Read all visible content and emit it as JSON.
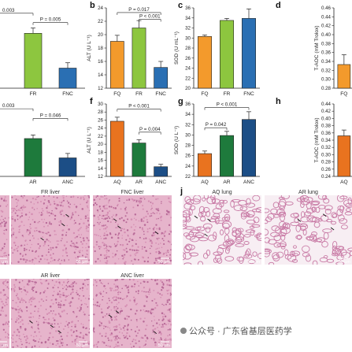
{
  "colors": {
    "orange": "#F39A2C",
    "light_green": "#8DC63F",
    "blue": "#2A6FB3",
    "deep_orange": "#E9731F",
    "dark_green": "#1E7A3C",
    "navy": "#1C4E86",
    "tissue": "#E7B7CC",
    "tissue_dark": "#C77AA2"
  },
  "chart_data": [
    {
      "id": "a",
      "type": "bar",
      "letter": "",
      "categories": [
        "FR",
        "FNC"
      ],
      "values": [
        20.2,
        15.0
      ],
      "errors": [
        0.8,
        0.8
      ],
      "ylabel": "",
      "ylim": [
        12,
        24
      ],
      "yticks": [],
      "comparisons": [
        {
          "from": -1,
          "to": 0,
          "label": "0.003",
          "level": 23.2
        },
        {
          "from": 0,
          "to": 1,
          "label": "P = 0.005",
          "level": 21.8
        }
      ]
    },
    {
      "id": "b",
      "type": "bar",
      "letter": "b",
      "categories": [
        "FQ",
        "FR",
        "FNC"
      ],
      "values": [
        19.0,
        21.0,
        15.1
      ],
      "errors": [
        0.9,
        1.1,
        0.9
      ],
      "ylabel": "ALT (U L⁻¹)",
      "ylim": [
        12,
        24
      ],
      "yticks": [
        12,
        14,
        16,
        18,
        20,
        22,
        24
      ],
      "comparisons": [
        {
          "from": 0,
          "to": 2,
          "label": "P = 0.017",
          "level": 23.3
        },
        {
          "from": 1,
          "to": 2,
          "label": "P < 0.001",
          "level": 22.3
        }
      ]
    },
    {
      "id": "c",
      "type": "bar",
      "letter": "c",
      "categories": [
        "FQ",
        "FR",
        "FNC"
      ],
      "values": [
        30.3,
        33.5,
        33.9
      ],
      "errors": [
        0.3,
        0.4,
        1.9
      ],
      "ylabel": "SOD (U mL⁻¹)",
      "ylim": [
        20,
        36
      ],
      "yticks": [
        20,
        22,
        24,
        26,
        28,
        30,
        32,
        34,
        36
      ],
      "comparisons": []
    },
    {
      "id": "d",
      "type": "bar",
      "letter": "d",
      "categories": [
        "FQ"
      ],
      "values": [
        0.333
      ],
      "errors": [
        0.022
      ],
      "ylabel": "T-AOC (mM Trolox)",
      "ylim": [
        0.28,
        0.46
      ],
      "yticks": [
        0.28,
        0.3,
        0.32,
        0.34,
        0.36,
        0.38,
        0.4,
        0.42,
        0.44,
        0.46
      ],
      "comparisons": []
    },
    {
      "id": "e",
      "type": "bar",
      "letter": "",
      "categories": [
        "AR",
        "ANC"
      ],
      "values": [
        21.4,
        16.6
      ],
      "errors": [
        0.9,
        1.1
      ],
      "ylabel": "",
      "ylim": [
        12,
        30
      ],
      "yticks": [],
      "comparisons": [
        {
          "from": -1,
          "to": 0,
          "label": "0.003",
          "level": 28.8
        },
        {
          "from": 0,
          "to": 1,
          "label": "P = 0.046",
          "level": 26.4
        }
      ]
    },
    {
      "id": "f",
      "type": "bar",
      "letter": "f",
      "categories": [
        "AQ",
        "AR",
        "ANC"
      ],
      "values": [
        25.7,
        20.3,
        14.4
      ],
      "errors": [
        1.0,
        0.8,
        0.6
      ],
      "ylabel": "ALT (U L⁻¹)",
      "ylim": [
        12,
        30
      ],
      "yticks": [
        12,
        14,
        16,
        18,
        20,
        22,
        24,
        26,
        28,
        30
      ],
      "comparisons": [
        {
          "from": 0,
          "to": 2,
          "label": "P < 0.001",
          "level": 28.7
        },
        {
          "from": 1,
          "to": 2,
          "label": "P = 0.004",
          "level": 23.0
        }
      ]
    },
    {
      "id": "g",
      "type": "bar",
      "letter": "g",
      "categories": [
        "AQ",
        "AR",
        "ANC"
      ],
      "values": [
        26.4,
        29.9,
        33.0
      ],
      "errors": [
        0.5,
        0.8,
        1.5
      ],
      "ylabel": "SOD (U L⁻¹)",
      "ylim": [
        22,
        36
      ],
      "yticks": [
        22,
        24,
        26,
        28,
        30,
        32,
        34,
        36
      ],
      "comparisons": [
        {
          "from": 0,
          "to": 2,
          "label": "P < 0.001",
          "level": 35.3
        },
        {
          "from": 0,
          "to": 1,
          "label": "P = 0.042",
          "level": 31.4
        }
      ]
    },
    {
      "id": "h",
      "type": "bar",
      "letter": "h",
      "categories": [
        "AQ"
      ],
      "values": [
        0.352
      ],
      "errors": [
        0.016
      ],
      "ylabel": "T-AOC (mM Trolox)",
      "ylim": [
        0.24,
        0.44
      ],
      "yticks": [
        0.24,
        0.26,
        0.28,
        0.3,
        0.32,
        0.34,
        0.36,
        0.38,
        0.4,
        0.42,
        0.44
      ],
      "comparisons": []
    }
  ],
  "micrographs": {
    "panel_j_letter": "j",
    "tiles": [
      {
        "label": "",
        "scale": "μm"
      },
      {
        "label": "FR liver",
        "scale": "50 μm"
      },
      {
        "label": "FNC liver",
        "scale": "50 μm"
      },
      {
        "label": "AQ lung",
        "scale": "50 μm"
      },
      {
        "label": "AR lung",
        "scale": "50 μm"
      },
      {
        "label": "",
        "scale": ""
      },
      {
        "label": "",
        "scale": "μm"
      },
      {
        "label": "AR liver",
        "scale": "50 μm"
      },
      {
        "label": "ANC liver",
        "scale": "50 μm"
      }
    ]
  },
  "watermark": "公众号 · 广东省基层医药学"
}
